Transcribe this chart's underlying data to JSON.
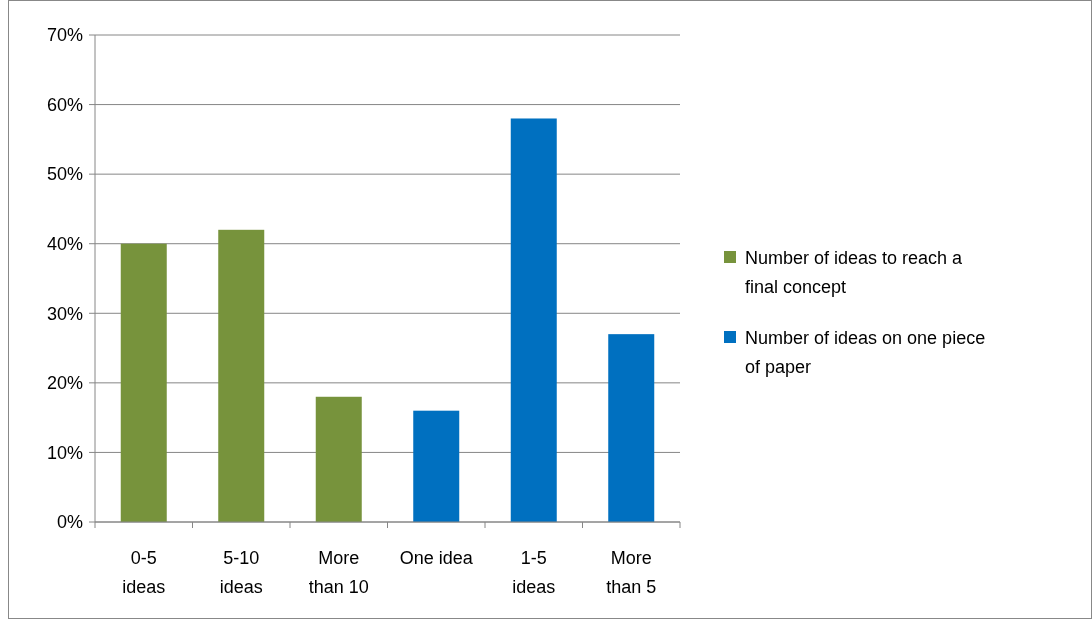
{
  "chart_data": {
    "type": "bar",
    "categories": [
      "0-5 ideas",
      "5-10 ideas",
      "More than 10",
      "One idea",
      "1-5 ideas",
      "More than 5"
    ],
    "series": [
      {
        "name": "Number of ideas to reach a final concept",
        "color": "#77933c",
        "values": [
          40,
          42,
          18,
          null,
          null,
          null
        ]
      },
      {
        "name": "Number of ideas on one piece of paper",
        "color": "#0070c0",
        "values": [
          null,
          null,
          null,
          16,
          58,
          27
        ]
      }
    ],
    "ylim": [
      0,
      70
    ],
    "yticks": [
      {
        "value": 0,
        "label": "0%"
      },
      {
        "value": 10,
        "label": "10%"
      },
      {
        "value": 20,
        "label": "20%"
      },
      {
        "value": 30,
        "label": "30%"
      },
      {
        "value": 40,
        "label": "40%"
      },
      {
        "value": 50,
        "label": "50%"
      },
      {
        "value": 60,
        "label": "60%"
      },
      {
        "value": 70,
        "label": "70%"
      }
    ],
    "grid": "y",
    "legend": "right"
  }
}
